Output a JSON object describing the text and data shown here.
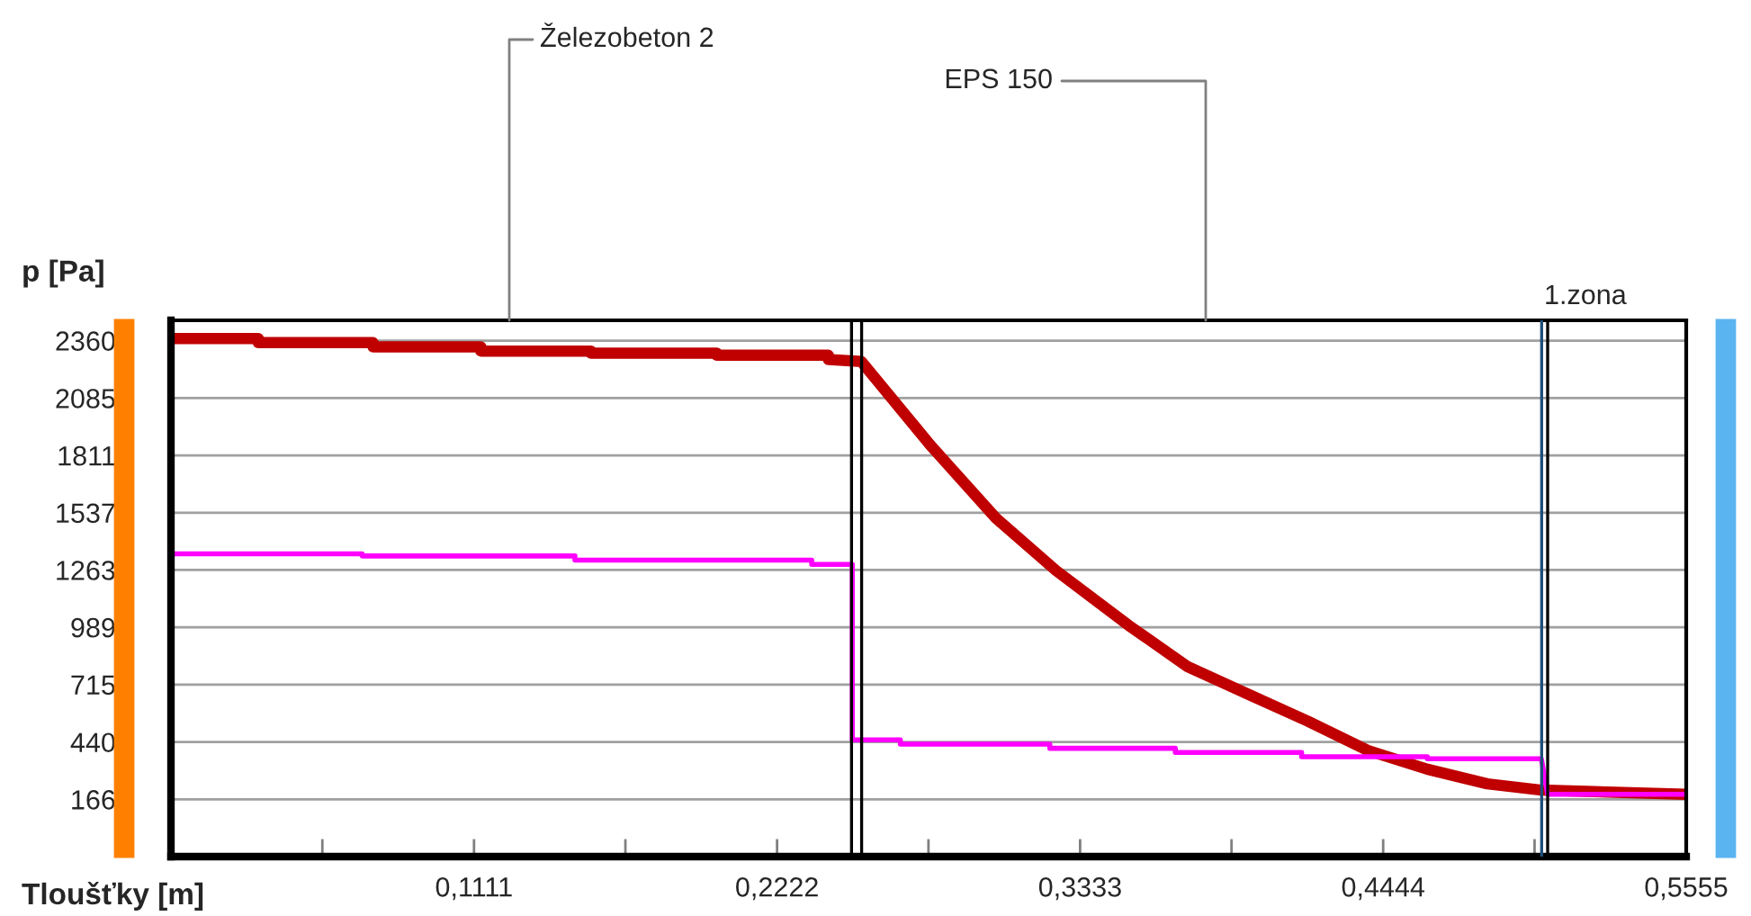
{
  "chart_data": {
    "type": "line",
    "xlabel": "Tloušťky [m]",
    "ylabel": "p [Pa]",
    "xlim": [
      0,
      0.5555
    ],
    "ylim": [
      -108,
      2457
    ],
    "xticks": [
      {
        "value": 0.0555,
        "label": null
      },
      {
        "value": 0.1111,
        "label": "0,1111"
      },
      {
        "value": 0.1666,
        "label": null
      },
      {
        "value": 0.2222,
        "label": "0,2222"
      },
      {
        "value": 0.2777,
        "label": null
      },
      {
        "value": 0.3333,
        "label": "0,3333"
      },
      {
        "value": 0.3888,
        "label": null
      },
      {
        "value": 0.4444,
        "label": "0,4444"
      },
      {
        "value": 0.4999,
        "label": null
      },
      {
        "value": 0.5555,
        "label": "0,5555"
      }
    ],
    "yticks": [
      166,
      440,
      715,
      989,
      1263,
      1537,
      1811,
      2085,
      2360
    ],
    "grid": "y",
    "legend": false,
    "line_style": "solid",
    "marker": "none",
    "series": [
      {
        "color": "#c00000",
        "x": [
          0,
          0.032,
          0.032,
          0.0741,
          0.0741,
          0.1136,
          0.1136,
          0.154,
          0.154,
          0.2001,
          0.2001,
          0.241,
          0.241,
          0.2531,
          0.2784,
          0.3025,
          0.3245,
          0.3509,
          0.3728,
          0.3947,
          0.4167,
          0.4387,
          0.4606,
          0.4826,
          0.5024,
          0.5555
        ],
        "values": [
          2370,
          2370,
          2350,
          2350,
          2330,
          2330,
          2310,
          2310,
          2300,
          2300,
          2290,
          2290,
          2270,
          2260,
          1860,
          1510,
          1260,
          1000,
          800,
          670,
          540,
          400,
          310,
          240,
          210,
          190
        ]
      },
      {
        "color": "#ff00ff",
        "x": [
          0,
          0.0701,
          0.0701,
          0.1481,
          0.1481,
          0.2349,
          0.2349,
          0.2498,
          0.2498,
          0.2674,
          0.2674,
          0.3222,
          0.3222,
          0.3682,
          0.3682,
          0.4145,
          0.4145,
          0.4606,
          0.4606,
          0.5024,
          0.5047,
          0.5555
        ],
        "values": [
          1340,
          1340,
          1330,
          1330,
          1310,
          1310,
          1290,
          1290,
          450,
          450,
          430,
          430,
          410,
          410,
          390,
          390,
          370,
          370,
          360,
          360,
          190,
          190
        ]
      }
    ],
    "ref_lines": [
      {
        "axis": "x",
        "value": 0.2495,
        "color": "#000000"
      },
      {
        "axis": "x",
        "value": 0.2532,
        "color": "#000000"
      },
      {
        "axis": "x",
        "value": 0.5025,
        "color": "#1f4e79"
      },
      {
        "axis": "x",
        "value": 0.5047,
        "color": "#000000"
      }
    ],
    "annotations": [
      "Železobeton 2",
      "EPS 150",
      "1.zona"
    ]
  }
}
